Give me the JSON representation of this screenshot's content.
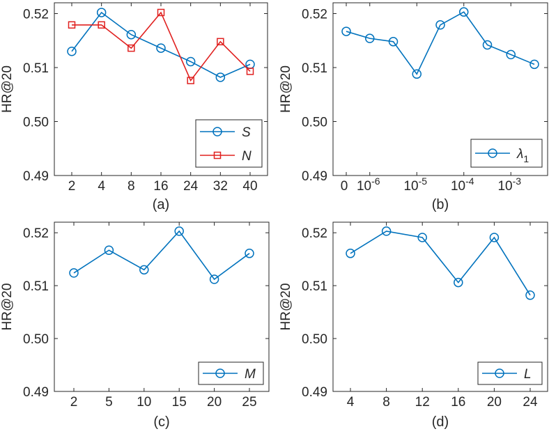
{
  "colors": {
    "blue": "#0072BD",
    "red": "#E0201F",
    "axis": "#262626"
  },
  "chart_data": [
    {
      "type": "line",
      "caption": "(a)",
      "ylabel": "HR@20",
      "ylim": [
        0.49,
        0.522
      ],
      "yticks": [
        "0.49",
        "0.50",
        "0.51",
        "0.52"
      ],
      "yticks_values": [
        0.49,
        0.5,
        0.51,
        0.52
      ],
      "categories": [
        "2",
        "4",
        "8",
        "16",
        "24",
        "32",
        "40"
      ],
      "legend": "bottom-right",
      "series": [
        {
          "name": "S",
          "marker": "circle",
          "color": "blue",
          "values": [
            0.513,
            0.5202,
            0.5161,
            0.5136,
            0.5111,
            0.5082,
            0.5106
          ]
        },
        {
          "name": "N",
          "marker": "square",
          "color": "red",
          "values": [
            0.5179,
            0.5179,
            0.5136,
            0.5202,
            0.5076,
            0.5148,
            0.5093
          ]
        }
      ]
    },
    {
      "type": "line",
      "caption": "(b)",
      "ylabel": "HR@20",
      "ylim": [
        0.49,
        0.522
      ],
      "yticks": [
        "0.49",
        "0.50",
        "0.51",
        "0.52"
      ],
      "yticks_values": [
        0.49,
        0.5,
        0.51,
        0.52
      ],
      "xticks": [
        {
          "base": "0",
          "exp": "",
          "at": 0
        },
        {
          "base": "10",
          "exp": "-6",
          "at": 1
        },
        {
          "base": "10",
          "exp": "-5",
          "at": 3
        },
        {
          "base": "10",
          "exp": "-4",
          "at": 5
        },
        {
          "base": "10",
          "exp": "-3",
          "at": 7
        }
      ],
      "x": [
        0,
        1,
        2,
        3,
        4,
        5,
        6,
        7,
        8
      ],
      "legend": "bottom-right",
      "series": [
        {
          "name": "λ",
          "sub": "1",
          "marker": "circle",
          "color": "blue",
          "values": [
            0.5167,
            0.5154,
            0.5148,
            0.5088,
            0.5179,
            0.5203,
            0.5142,
            0.5124,
            0.5106
          ]
        }
      ]
    },
    {
      "type": "line",
      "caption": "(c)",
      "ylabel": "HR@20",
      "ylim": [
        0.49,
        0.522
      ],
      "yticks": [
        "0.49",
        "0.50",
        "0.51",
        "0.52"
      ],
      "yticks_values": [
        0.49,
        0.5,
        0.51,
        0.52
      ],
      "categories": [
        "2",
        "5",
        "10",
        "15",
        "20",
        "25"
      ],
      "legend": "bottom-right",
      "series": [
        {
          "name": "M",
          "marker": "circle",
          "color": "blue",
          "values": [
            0.5124,
            0.5167,
            0.513,
            0.5203,
            0.5112,
            0.5161
          ]
        }
      ]
    },
    {
      "type": "line",
      "caption": "(d)",
      "ylabel": "HR@20",
      "ylim": [
        0.49,
        0.522
      ],
      "yticks": [
        "0.49",
        "0.50",
        "0.51",
        "0.52"
      ],
      "yticks_values": [
        0.49,
        0.5,
        0.51,
        0.52
      ],
      "categories": [
        "4",
        "8",
        "12",
        "16",
        "20",
        "24"
      ],
      "legend": "bottom-right",
      "series": [
        {
          "name": "L",
          "marker": "circle",
          "color": "blue",
          "values": [
            0.5161,
            0.5203,
            0.5191,
            0.5106,
            0.5191,
            0.5082
          ]
        }
      ]
    }
  ]
}
